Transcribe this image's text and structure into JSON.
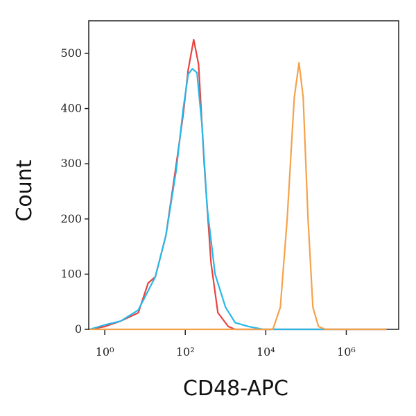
{
  "chart_data": {
    "type": "line",
    "x_label": "CD48-APC",
    "y_label": "Count",
    "xscale": "log",
    "xlim": [
      0.4,
      20000000
    ],
    "ylim": [
      0,
      559
    ],
    "xticks": [
      {
        "value": 1,
        "label": "10⁰"
      },
      {
        "value": 100,
        "label": "10²"
      },
      {
        "value": 10000,
        "label": "10⁴"
      },
      {
        "value": 1000000,
        "label": "10⁶"
      }
    ],
    "yticks": [
      0,
      100,
      200,
      300,
      400,
      500
    ],
    "series": [
      {
        "color": "#e8423f",
        "x": [
          0.42,
          1,
          2.5,
          6.8,
          12,
          18,
          33,
          60,
          89,
          118,
          162,
          214,
          295,
          437,
          646,
          1175,
          1738,
          10000000
        ],
        "values": [
          0,
          5,
          15,
          30,
          84,
          95,
          170,
          300,
          390,
          470,
          525,
          480,
          300,
          120,
          30,
          5,
          0,
          0
        ]
      },
      {
        "color": "#27b8e8",
        "x": [
          0.42,
          1,
          2.5,
          6.8,
          18,
          33,
          60,
          89,
          118,
          150,
          195,
          260,
          350,
          550,
          1000,
          1740,
          3800,
          8600,
          10000000
        ],
        "values": [
          0,
          8,
          15,
          35,
          95,
          170,
          290,
          400,
          462,
          472,
          465,
          370,
          220,
          100,
          40,
          12,
          5,
          0,
          0
        ]
      },
      {
        "color": "#f4a24a",
        "x": [
          0.42,
          15000,
          23000,
          34000,
          51000,
          67000,
          85000,
          112000,
          148000,
          204000,
          302000,
          10000000
        ],
        "values": [
          0,
          0,
          40,
          200,
          420,
          483,
          420,
          200,
          40,
          5,
          0,
          0
        ]
      }
    ]
  }
}
